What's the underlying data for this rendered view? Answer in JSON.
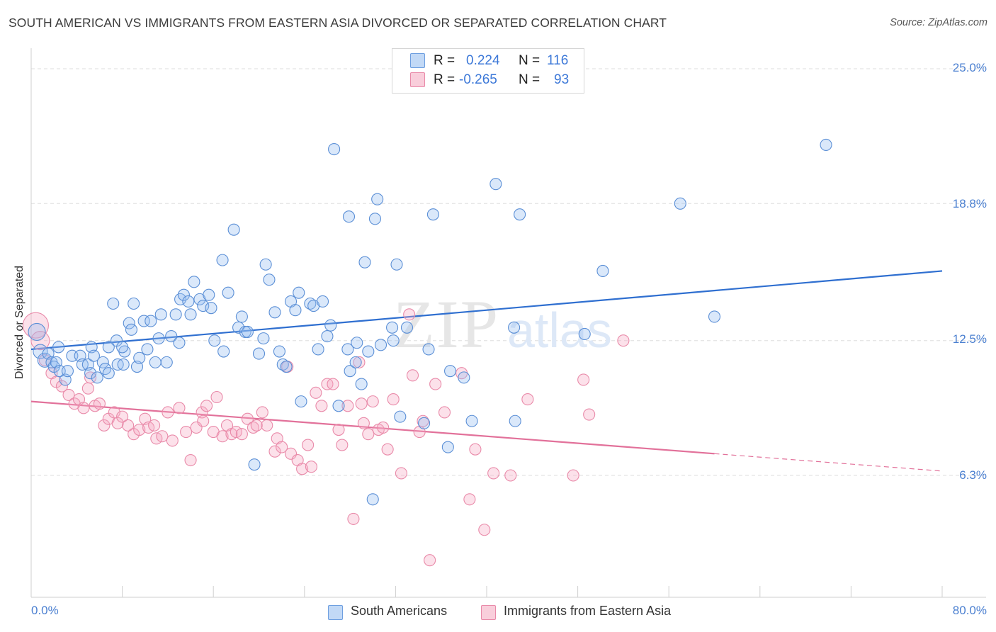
{
  "title": "SOUTH AMERICAN VS IMMIGRANTS FROM EASTERN ASIA DIVORCED OR SEPARATED CORRELATION CHART",
  "source": "Source: ZipAtlas.com",
  "watermark": {
    "zip": "ZIP",
    "atlas": "atlas"
  },
  "stats": {
    "r_label": "R =",
    "n_label": "N =",
    "rows": [
      {
        "r": "0.224",
        "n": "116",
        "color": "#a9c8f0"
      },
      {
        "r": "-0.265",
        "n": "93",
        "color": "#f7b9cc"
      }
    ]
  },
  "legend": {
    "items": [
      {
        "label": "South Americans",
        "color": "#a9c8f0"
      },
      {
        "label": "Immigrants from Eastern Asia",
        "color": "#f7b9cc"
      }
    ]
  },
  "axes": {
    "y_label": "Divorced or Separated",
    "x_min_label": "0.0%",
    "x_max_label": "80.0%",
    "y_ticks": [
      "25.0%",
      "18.8%",
      "12.5%",
      "6.3%"
    ]
  },
  "colors": {
    "blue_fill": "rgba(150,190,240,0.35)",
    "blue_stroke": "#5b8fd6",
    "blue_line": "#2f6fd0",
    "pink_fill": "rgba(245,170,195,0.35)",
    "pink_stroke": "#e98aa9",
    "pink_line": "#e2719a",
    "grid": "#dedede",
    "tick_label": "#4a7fd0"
  },
  "chart_data": {
    "type": "scatter",
    "xlabel": "",
    "ylabel": "Divorced or Separated",
    "xlim": [
      0,
      80
    ],
    "ylim": [
      0,
      26
    ],
    "y_gridlines": [
      6.3,
      12.5,
      18.8,
      25.0
    ],
    "grid": true,
    "series": [
      {
        "name": "South Americans",
        "trend": {
          "x0": 0,
          "y0": 12.1,
          "x1": 80,
          "y1": 15.7
        },
        "points": [
          [
            0.5,
            12.9
          ],
          [
            0.8,
            12.0
          ],
          [
            1.2,
            11.6
          ],
          [
            1.5,
            11.9
          ],
          [
            1.8,
            11.5
          ],
          [
            2.0,
            11.3
          ],
          [
            2.2,
            11.5
          ],
          [
            2.5,
            11.1
          ],
          [
            3.0,
            10.7
          ],
          [
            3.2,
            11.1
          ],
          [
            3.6,
            11.8
          ],
          [
            4.3,
            11.8
          ],
          [
            4.5,
            11.4
          ],
          [
            5.0,
            11.4
          ],
          [
            5.2,
            11.0
          ],
          [
            5.3,
            12.2
          ],
          [
            5.5,
            11.8
          ],
          [
            5.8,
            10.8
          ],
          [
            6.3,
            11.5
          ],
          [
            6.5,
            11.2
          ],
          [
            6.8,
            11.0
          ],
          [
            7.2,
            14.2
          ],
          [
            7.5,
            12.5
          ],
          [
            7.6,
            11.4
          ],
          [
            8.1,
            11.4
          ],
          [
            8.2,
            12.0
          ],
          [
            8.6,
            13.3
          ],
          [
            8.8,
            13.0
          ],
          [
            9.0,
            14.2
          ],
          [
            9.3,
            11.3
          ],
          [
            9.5,
            11.7
          ],
          [
            9.9,
            13.4
          ],
          [
            10.2,
            12.1
          ],
          [
            10.5,
            13.4
          ],
          [
            10.9,
            11.5
          ],
          [
            11.2,
            12.6
          ],
          [
            11.4,
            13.7
          ],
          [
            11.9,
            11.5
          ],
          [
            12.3,
            12.7
          ],
          [
            12.7,
            13.7
          ],
          [
            13.0,
            12.4
          ],
          [
            13.1,
            14.4
          ],
          [
            13.4,
            14.6
          ],
          [
            13.8,
            14.3
          ],
          [
            14.0,
            13.7
          ],
          [
            14.3,
            15.2
          ],
          [
            14.8,
            14.4
          ],
          [
            15.1,
            14.1
          ],
          [
            15.6,
            14.6
          ],
          [
            15.8,
            14.0
          ],
          [
            16.1,
            12.5
          ],
          [
            16.8,
            16.2
          ],
          [
            16.9,
            12.0
          ],
          [
            17.3,
            14.7
          ],
          [
            17.8,
            17.6
          ],
          [
            18.2,
            13.1
          ],
          [
            18.5,
            13.6
          ],
          [
            18.8,
            12.9
          ],
          [
            19.0,
            12.9
          ],
          [
            19.6,
            6.8
          ],
          [
            20.0,
            11.9
          ],
          [
            20.4,
            12.6
          ],
          [
            20.6,
            16.0
          ],
          [
            20.9,
            15.3
          ],
          [
            21.4,
            13.8
          ],
          [
            21.8,
            12.0
          ],
          [
            22.1,
            11.4
          ],
          [
            22.4,
            11.3
          ],
          [
            22.8,
            14.3
          ],
          [
            23.2,
            13.9
          ],
          [
            23.5,
            14.7
          ],
          [
            23.7,
            9.7
          ],
          [
            24.5,
            14.2
          ],
          [
            24.8,
            14.1
          ],
          [
            25.2,
            12.1
          ],
          [
            25.6,
            14.3
          ],
          [
            26.0,
            12.7
          ],
          [
            26.3,
            13.2
          ],
          [
            26.6,
            21.3
          ],
          [
            27.0,
            9.5
          ],
          [
            27.8,
            12.1
          ],
          [
            27.9,
            18.2
          ],
          [
            28.0,
            11.1
          ],
          [
            28.6,
            12.4
          ],
          [
            29.0,
            10.5
          ],
          [
            29.3,
            16.1
          ],
          [
            29.6,
            12.0
          ],
          [
            30.0,
            5.2
          ],
          [
            30.2,
            18.1
          ],
          [
            30.4,
            19.0
          ],
          [
            30.7,
            12.3
          ],
          [
            31.7,
            13.1
          ],
          [
            31.8,
            12.5
          ],
          [
            32.1,
            16.0
          ],
          [
            32.4,
            9.0
          ],
          [
            33.0,
            13.1
          ],
          [
            34.5,
            8.7
          ],
          [
            34.9,
            12.1
          ],
          [
            35.3,
            18.3
          ],
          [
            36.6,
            7.6
          ],
          [
            38.0,
            10.8
          ],
          [
            38.7,
            8.8
          ],
          [
            40.8,
            19.7
          ],
          [
            42.5,
            8.8
          ],
          [
            42.9,
            18.3
          ],
          [
            42.4,
            13.1
          ],
          [
            48.6,
            12.8
          ],
          [
            50.2,
            15.7
          ],
          [
            57.0,
            18.8
          ],
          [
            60.0,
            13.6
          ],
          [
            69.8,
            21.5
          ],
          [
            28.5,
            11.5
          ],
          [
            6.8,
            12.2
          ],
          [
            2.4,
            12.2
          ],
          [
            8.0,
            12.2
          ],
          [
            36.8,
            11.1
          ]
        ]
      },
      {
        "name": "Immigrants from Eastern Asia",
        "trend": {
          "x0": 0,
          "y0": 9.7,
          "x1": 60,
          "y1": 7.3,
          "dash_to_x": 80,
          "dash_to_y": 6.5
        },
        "points": [
          [
            0.4,
            13.2
          ],
          [
            0.8,
            12.5
          ],
          [
            1.2,
            11.6
          ],
          [
            1.8,
            11.0
          ],
          [
            2.2,
            10.6
          ],
          [
            2.7,
            10.4
          ],
          [
            3.3,
            10.0
          ],
          [
            3.8,
            9.6
          ],
          [
            4.2,
            9.8
          ],
          [
            4.6,
            9.4
          ],
          [
            5.0,
            10.3
          ],
          [
            5.2,
            10.8
          ],
          [
            5.6,
            9.5
          ],
          [
            6.0,
            9.6
          ],
          [
            6.4,
            8.6
          ],
          [
            6.8,
            8.9
          ],
          [
            7.3,
            9.2
          ],
          [
            7.6,
            8.7
          ],
          [
            8.0,
            9.0
          ],
          [
            8.5,
            8.6
          ],
          [
            9.0,
            8.2
          ],
          [
            9.5,
            8.4
          ],
          [
            10.0,
            8.9
          ],
          [
            10.3,
            8.5
          ],
          [
            10.8,
            8.6
          ],
          [
            11.0,
            8.0
          ],
          [
            11.5,
            8.1
          ],
          [
            12.0,
            9.2
          ],
          [
            12.4,
            7.9
          ],
          [
            13.0,
            9.4
          ],
          [
            13.6,
            8.3
          ],
          [
            14.0,
            7.0
          ],
          [
            14.5,
            8.5
          ],
          [
            15.0,
            9.2
          ],
          [
            15.4,
            9.5
          ],
          [
            16.0,
            8.3
          ],
          [
            16.3,
            9.9
          ],
          [
            16.8,
            8.1
          ],
          [
            17.2,
            8.6
          ],
          [
            17.6,
            8.2
          ],
          [
            18.0,
            8.3
          ],
          [
            18.5,
            8.2
          ],
          [
            19.0,
            8.9
          ],
          [
            19.5,
            8.5
          ],
          [
            19.8,
            8.6
          ],
          [
            20.3,
            9.2
          ],
          [
            20.7,
            8.6
          ],
          [
            21.4,
            7.4
          ],
          [
            21.6,
            8.0
          ],
          [
            22.0,
            7.6
          ],
          [
            22.5,
            11.3
          ],
          [
            22.8,
            7.3
          ],
          [
            23.4,
            7.0
          ],
          [
            23.8,
            6.6
          ],
          [
            24.3,
            7.7
          ],
          [
            24.6,
            6.7
          ],
          [
            25.0,
            10.1
          ],
          [
            25.5,
            9.5
          ],
          [
            26.0,
            10.5
          ],
          [
            26.5,
            10.5
          ],
          [
            27.0,
            8.4
          ],
          [
            27.3,
            7.7
          ],
          [
            27.8,
            9.5
          ],
          [
            28.3,
            4.3
          ],
          [
            28.8,
            11.5
          ],
          [
            29.2,
            8.7
          ],
          [
            29.6,
            8.2
          ],
          [
            30.0,
            9.7
          ],
          [
            30.5,
            8.4
          ],
          [
            30.9,
            8.5
          ],
          [
            31.3,
            7.5
          ],
          [
            31.8,
            9.8
          ],
          [
            32.5,
            6.4
          ],
          [
            33.2,
            13.7
          ],
          [
            33.5,
            10.9
          ],
          [
            34.1,
            8.3
          ],
          [
            34.4,
            8.8
          ],
          [
            35.0,
            2.4
          ],
          [
            35.5,
            10.5
          ],
          [
            36.3,
            9.2
          ],
          [
            37.8,
            11.0
          ],
          [
            38.5,
            5.2
          ],
          [
            39.0,
            7.5
          ],
          [
            39.8,
            3.8
          ],
          [
            40.6,
            6.4
          ],
          [
            42.1,
            6.3
          ],
          [
            43.6,
            9.8
          ],
          [
            47.6,
            6.3
          ],
          [
            48.5,
            10.7
          ],
          [
            49.0,
            9.1
          ],
          [
            52.0,
            12.5
          ],
          [
            15.1,
            8.8
          ],
          [
            29.0,
            9.6
          ]
        ]
      }
    ]
  }
}
